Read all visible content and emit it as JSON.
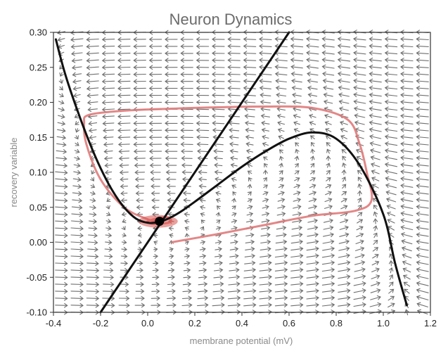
{
  "chart_data": {
    "type": "line",
    "title": "Neuron Dynamics",
    "xlabel": "membrane potential (mV)",
    "ylabel": "recovery variable",
    "xlim": [
      -0.4,
      1.2
    ],
    "ylim": [
      -0.1,
      0.3
    ],
    "xticks": [
      "-0.4",
      "-0.2",
      "0.0",
      "0.2",
      "0.4",
      "0.6",
      "0.8",
      "1.0",
      "1.2"
    ],
    "yticks": [
      "-0.10",
      "-0.05",
      "0.00",
      "0.05",
      "0.10",
      "0.15",
      "0.20",
      "0.25",
      "0.30"
    ],
    "model": {
      "a": 0.1,
      "b": 0.5,
      "epsilon": 0.01,
      "vector_field": true
    },
    "colors": {
      "nullclines": "#111111",
      "trajectory": "#e07a7a",
      "arrows": "#6f6f6f",
      "fixed_point": "#000000"
    },
    "series": [
      {
        "kind": "v-nullcline",
        "x": [
          -0.39,
          -0.35,
          -0.3,
          -0.25,
          -0.2,
          -0.15,
          -0.1,
          -0.05,
          0.0,
          0.05,
          0.1,
          0.15,
          0.2,
          0.3,
          0.4,
          0.5,
          0.6,
          0.7,
          0.8,
          0.9,
          1.0,
          1.05,
          1.1
        ],
        "y": [
          0.29,
          0.24,
          0.19,
          0.145,
          0.106,
          0.074,
          0.05,
          0.034,
          0.028,
          0.029,
          0.036,
          0.046,
          0.058,
          0.083,
          0.108,
          0.13,
          0.148,
          0.157,
          0.148,
          0.11,
          0.04,
          -0.03,
          -0.09
        ]
      },
      {
        "kind": "w-nullcline",
        "x": [
          -0.2,
          0.6
        ],
        "y": [
          -0.1,
          0.3
        ]
      },
      {
        "kind": "trajectory",
        "x": [
          0.1,
          0.3,
          0.5,
          0.7,
          0.88,
          0.95,
          0.93,
          0.9,
          0.85,
          0.7,
          0.5,
          0.3,
          0.1,
          -0.1,
          -0.25,
          -0.27,
          -0.26,
          -0.2,
          -0.1,
          0.0,
          0.06,
          0.1,
          0.07,
          0.0,
          0.03,
          0.06
        ],
        "y": [
          0.0,
          0.012,
          0.025,
          0.038,
          0.045,
          0.06,
          0.1,
          0.14,
          0.175,
          0.192,
          0.194,
          0.193,
          0.191,
          0.188,
          0.182,
          0.17,
          0.14,
          0.09,
          0.05,
          0.033,
          0.027,
          0.03,
          0.036,
          0.03,
          0.026,
          0.03
        ]
      }
    ],
    "fixed_point": {
      "x": 0.05,
      "y": 0.03
    }
  }
}
